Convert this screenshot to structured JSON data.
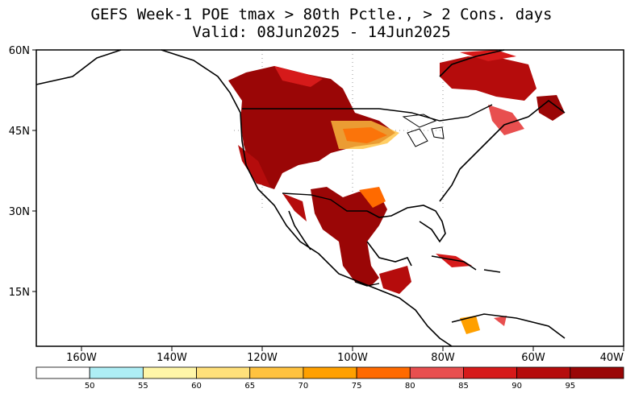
{
  "title": {
    "line1": "GEFS Week-1 POE tmax > 80th Pctle., > 2 Cons. days",
    "line2": "Valid: 08Jun2025 - 14Jun2025"
  },
  "map": {
    "lat_labels": [
      "60N",
      "45N",
      "30N",
      "15N"
    ],
    "lon_labels": [
      "160W",
      "140W",
      "120W",
      "100W",
      "80W",
      "60W",
      "40W"
    ]
  },
  "colorbar": {
    "labels": [
      "50",
      "55",
      "60",
      "65",
      "70",
      "75",
      "80",
      "85",
      "90",
      "95"
    ],
    "colors": [
      "#ffffff",
      "#aeeef5",
      "#fff6a8",
      "#ffe07a",
      "#ffc23f",
      "#ffa000",
      "#ff6a00",
      "#e84f4f",
      "#d61a1a",
      "#b50c0c",
      "#9a0606"
    ]
  }
}
